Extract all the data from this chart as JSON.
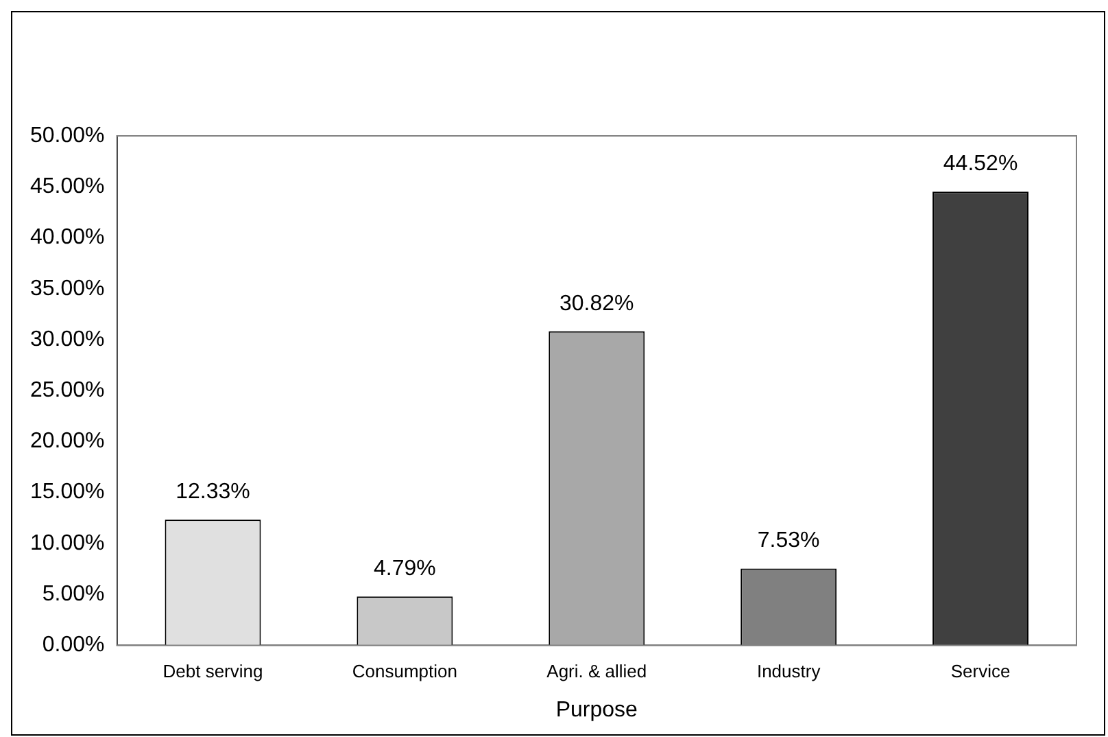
{
  "chart_data": {
    "type": "bar",
    "xlabel": "Purpose",
    "categories": [
      "Debt serving",
      "Consumption",
      "Agri. & allied",
      "Industry",
      "Service"
    ],
    "values": [
      12.33,
      4.79,
      30.82,
      7.53,
      44.52
    ],
    "colors": [
      "#e0e0e0",
      "#c8c8c8",
      "#a8a8a8",
      "#808080",
      "#404040"
    ],
    "value_labels": [
      "12.33%",
      "4.79%",
      "30.82%",
      "7.53%",
      "44.52%"
    ],
    "ylim": [
      0,
      50
    ],
    "yticks": [
      {
        "value": 0,
        "label": "0.00%"
      },
      {
        "value": 5,
        "label": "5.00%"
      },
      {
        "value": 10,
        "label": "10.00%"
      },
      {
        "value": 15,
        "label": "15.00%"
      },
      {
        "value": 20,
        "label": "20.00%"
      },
      {
        "value": 25,
        "label": "25.00%"
      },
      {
        "value": 30,
        "label": "30.00%"
      },
      {
        "value": 35,
        "label": "35.00%"
      },
      {
        "value": 40,
        "label": "40.00%"
      },
      {
        "value": 45,
        "label": "45.00%"
      },
      {
        "value": 50,
        "label": "50.00%"
      }
    ],
    "grid": false,
    "legend": false
  }
}
